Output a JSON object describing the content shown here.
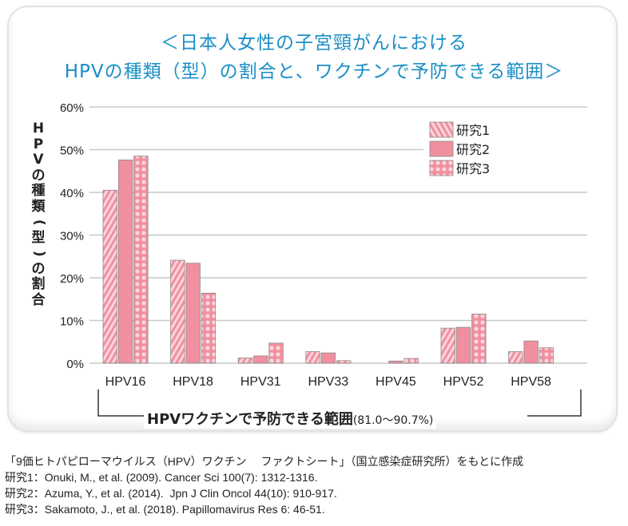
{
  "title_lines": [
    "＜日本人女性の子宮頸がんにおける",
    "HPVの種類（型）の割合と、ワクチンで予防できる範囲＞"
  ],
  "range_label": "HPVワクチンで予防できる範囲",
  "range_value": "(81.0～90.7%)",
  "notes": [
    "「9価ヒトパピローマウイルス（HPV）ワクチン　 ファクトシート」（国立感染症研究所）をもとに作成",
    "研究1：Onuki, M., et al. (2009). Cancer Sci 100(7): 1312-1316.",
    "研究2：Azuma, Y., et al. (2014).  Jpn J Clin Oncol 44(10): 910-917.",
    "研究3：Sakamoto, J., et al. (2018). Papillomavirus Res 6: 46-51."
  ],
  "chart_data": {
    "type": "bar",
    "ylabel": "HPVの種類(型)の割合",
    "ylim": [
      0,
      60
    ],
    "yticks": [
      "0%",
      "10%",
      "20%",
      "30%",
      "40%",
      "50%",
      "60%"
    ],
    "grid": true,
    "legend_position": "top-right",
    "categories": [
      "HPV16",
      "HPV18",
      "HPV31",
      "HPV33",
      "HPV45",
      "HPV52",
      "HPV58"
    ],
    "series": [
      {
        "name": "研究1",
        "pattern": "stripes",
        "values": [
          40.5,
          24.1,
          1.2,
          2.7,
          0,
          8.2,
          2.7
        ]
      },
      {
        "name": "研究2",
        "pattern": "solid",
        "values": [
          47.6,
          23.4,
          1.7,
          2.4,
          0.5,
          8.4,
          5.2
        ]
      },
      {
        "name": "研究3",
        "pattern": "dots",
        "values": [
          48.5,
          16.4,
          4.7,
          0.6,
          1.1,
          11.5,
          3.6
        ]
      }
    ],
    "colors": {
      "bar": "#f0909f",
      "light": "#fcd6dc",
      "edge": "#888888",
      "title": "#1a8ec6"
    }
  }
}
